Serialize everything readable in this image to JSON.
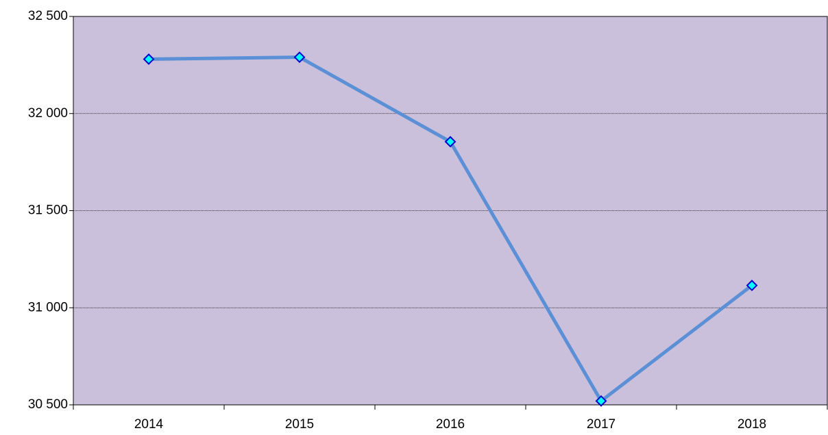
{
  "chart_data": {
    "type": "line",
    "categories": [
      "2014",
      "2015",
      "2016",
      "2017",
      "2018"
    ],
    "series": [
      {
        "color": "#5b8fd6",
        "values": [
          32280,
          32290,
          31855,
          30520,
          31115
        ]
      }
    ],
    "marker_color": "#00ffff",
    "marker_edge_color": "#0000cc",
    "plot_background": "#cbc0dc",
    "ylim": [
      30500,
      32500
    ],
    "yticks": [
      {
        "value": 30500,
        "label": "30 500"
      },
      {
        "value": 31000,
        "label": "31 000"
      },
      {
        "value": 31500,
        "label": "31 500"
      },
      {
        "value": 32000,
        "label": "32 000"
      },
      {
        "value": 32500,
        "label": "32 500"
      }
    ],
    "grid": true
  }
}
